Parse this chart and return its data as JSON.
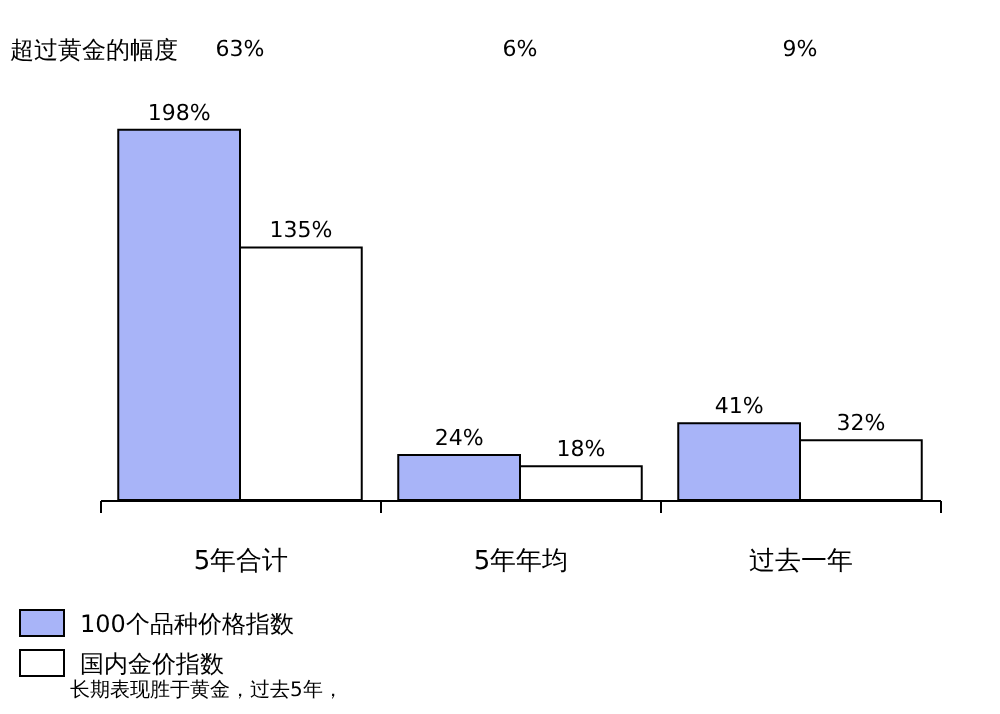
{
  "chart_data": {
    "type": "bar",
    "categories": [
      "5年合计",
      "5年年均",
      "过去一年"
    ],
    "series": [
      {
        "name": "100个品种价格指数",
        "color": "#a8b4f8",
        "values": [
          198,
          24,
          41
        ],
        "value_labels": [
          "198%",
          "24%",
          "41%"
        ]
      },
      {
        "name": "国内金价指数",
        "color": "#ffffff",
        "values": [
          135,
          18,
          32
        ],
        "value_labels": [
          "135%",
          "18%",
          "32%"
        ]
      }
    ],
    "annotations": [
      "超过黄金的幅度",
      "63%",
      "6%",
      "9%",
      "长期表现胜于黄金，过去5年，"
    ],
    "legend": "bottom left",
    "grid": false
  }
}
